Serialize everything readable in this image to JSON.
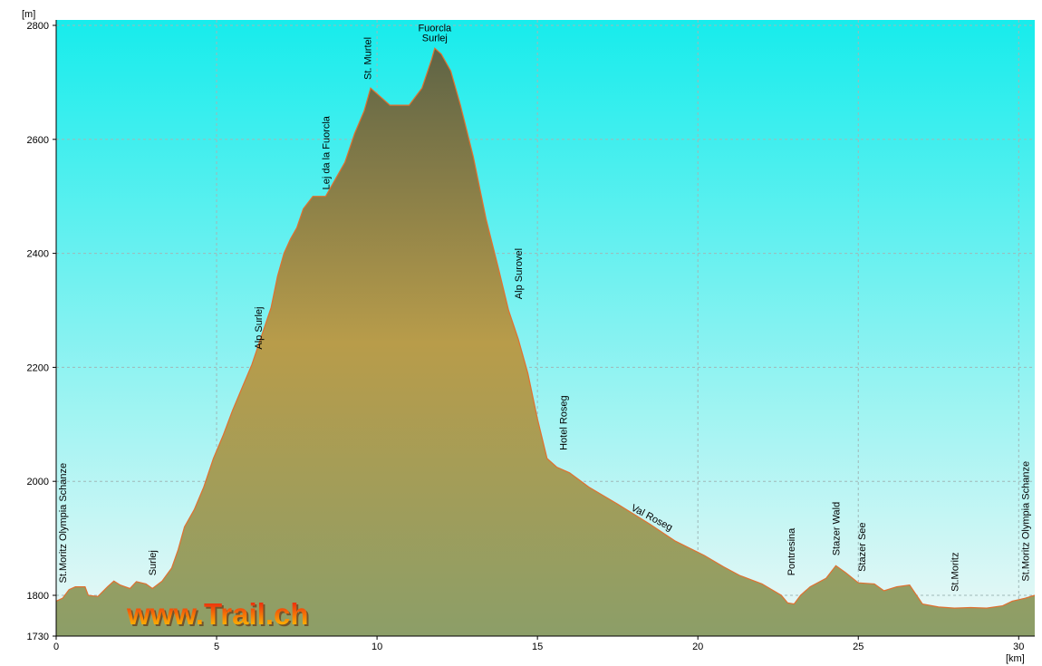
{
  "chart_data": {
    "type": "area",
    "y_unit": "[m]",
    "x_unit": "[km]",
    "ylim": [
      1730,
      2800
    ],
    "xlim": [
      0,
      30.5
    ],
    "y_ticks": [
      1730,
      1800,
      2000,
      2200,
      2400,
      2600,
      2800
    ],
    "x_ticks": [
      0,
      5,
      10,
      15,
      20,
      25,
      30
    ],
    "grid": true,
    "watermark": "www.Trail.ch",
    "profile": [
      [
        0.0,
        1790
      ],
      [
        0.2,
        1795
      ],
      [
        0.4,
        1810
      ],
      [
        0.6,
        1815
      ],
      [
        0.9,
        1815
      ],
      [
        1.0,
        1800
      ],
      [
        1.3,
        1798
      ],
      [
        1.6,
        1815
      ],
      [
        1.8,
        1825
      ],
      [
        2.0,
        1818
      ],
      [
        2.3,
        1812
      ],
      [
        2.5,
        1824
      ],
      [
        2.8,
        1820
      ],
      [
        3.0,
        1812
      ],
      [
        3.3,
        1825
      ],
      [
        3.6,
        1848
      ],
      [
        3.8,
        1880
      ],
      [
        4.0,
        1920
      ],
      [
        4.3,
        1950
      ],
      [
        4.6,
        1990
      ],
      [
        4.9,
        2040
      ],
      [
        5.2,
        2080
      ],
      [
        5.5,
        2125
      ],
      [
        5.8,
        2165
      ],
      [
        6.1,
        2205
      ],
      [
        6.4,
        2255
      ],
      [
        6.7,
        2305
      ],
      [
        6.9,
        2360
      ],
      [
        7.1,
        2400
      ],
      [
        7.3,
        2425
      ],
      [
        7.5,
        2445
      ],
      [
        7.7,
        2478
      ],
      [
        8.0,
        2500
      ],
      [
        8.4,
        2500
      ],
      [
        8.7,
        2530
      ],
      [
        9.0,
        2560
      ],
      [
        9.3,
        2610
      ],
      [
        9.6,
        2650
      ],
      [
        9.8,
        2690
      ],
      [
        10.1,
        2675
      ],
      [
        10.4,
        2660
      ],
      [
        11.0,
        2660
      ],
      [
        11.4,
        2690
      ],
      [
        11.7,
        2740
      ],
      [
        11.8,
        2760
      ],
      [
        12.0,
        2750
      ],
      [
        12.3,
        2720
      ],
      [
        12.6,
        2660
      ],
      [
        13.0,
        2570
      ],
      [
        13.4,
        2460
      ],
      [
        13.8,
        2370
      ],
      [
        14.1,
        2300
      ],
      [
        14.4,
        2250
      ],
      [
        14.7,
        2190
      ],
      [
        15.0,
        2110
      ],
      [
        15.3,
        2040
      ],
      [
        15.6,
        2025
      ],
      [
        16.0,
        2015
      ],
      [
        16.6,
        1990
      ],
      [
        17.5,
        1960
      ],
      [
        18.5,
        1925
      ],
      [
        19.3,
        1895
      ],
      [
        20.2,
        1870
      ],
      [
        20.8,
        1850
      ],
      [
        21.3,
        1835
      ],
      [
        22.0,
        1820
      ],
      [
        22.6,
        1800
      ],
      [
        22.8,
        1787
      ],
      [
        23.0,
        1785
      ],
      [
        23.2,
        1800
      ],
      [
        23.5,
        1815
      ],
      [
        24.0,
        1830
      ],
      [
        24.3,
        1852
      ],
      [
        24.6,
        1840
      ],
      [
        25.0,
        1822
      ],
      [
        25.5,
        1820
      ],
      [
        25.8,
        1808
      ],
      [
        26.2,
        1815
      ],
      [
        26.6,
        1818
      ],
      [
        27.0,
        1785
      ],
      [
        27.5,
        1780
      ],
      [
        28.0,
        1778
      ],
      [
        28.5,
        1779
      ],
      [
        29.0,
        1778
      ],
      [
        29.5,
        1782
      ],
      [
        29.8,
        1790
      ],
      [
        30.2,
        1795
      ],
      [
        30.5,
        1800
      ]
    ],
    "annotations": [
      {
        "label": "St.Moritz Olympia Schanze",
        "x": 0.2,
        "y": 1812,
        "rotate": true
      },
      {
        "label": "Surlej",
        "x": 3.0,
        "y": 1825,
        "rotate": true
      },
      {
        "label": "Alp Surlej",
        "x": 6.3,
        "y": 2222,
        "rotate": true
      },
      {
        "label": "Lej da la Fuorcla",
        "x": 8.4,
        "y": 2502,
        "rotate": true
      },
      {
        "label": "St. Murtel",
        "x": 9.7,
        "y": 2695,
        "rotate": true
      },
      {
        "label": "Fuorcla",
        "x": 11.8,
        "y": 2790,
        "rotate": false
      },
      {
        "label": "Surlej",
        "x": 11.8,
        "y": 2772,
        "rotate": false
      },
      {
        "label": "Alp Surovel",
        "x": 14.4,
        "y": 2310,
        "rotate": true
      },
      {
        "label": "Hotel Roseg",
        "x": 15.8,
        "y": 2045,
        "rotate": true
      },
      {
        "label": "Val Roseg",
        "x": 17.9,
        "y": 1950,
        "angle": 28
      },
      {
        "label": "Pontresina",
        "x": 22.9,
        "y": 1825,
        "rotate": true
      },
      {
        "label": "Stazer Wald",
        "x": 24.3,
        "y": 1860,
        "rotate": true
      },
      {
        "label": "Stazer See",
        "x": 25.1,
        "y": 1832,
        "rotate": true
      },
      {
        "label": "St.Moritz",
        "x": 28.0,
        "y": 1797,
        "rotate": true
      },
      {
        "label": "St.Moritz Olympia Schanze",
        "x": 30.2,
        "y": 1815,
        "rotate": true
      }
    ]
  },
  "colors": {
    "sky_top": "#17ecec",
    "sky_bottom": "#eef8f6",
    "terrain_top": "#5f6446",
    "terrain_mid": "#b89c4a",
    "terrain_bottom": "#8c9e68",
    "outline": "#e07030",
    "brand_red": "#e81010",
    "brand_yellow": "#ffd000"
  }
}
